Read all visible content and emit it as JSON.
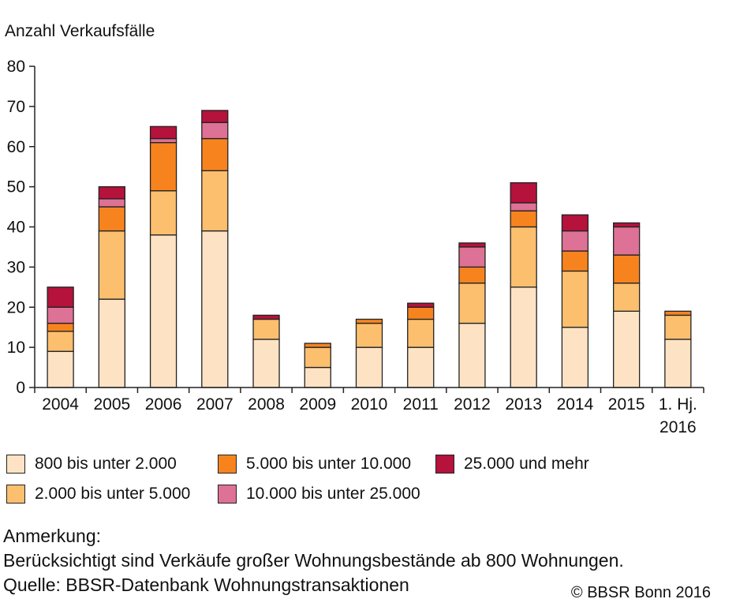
{
  "chart_data": {
    "type": "bar",
    "stacked": true,
    "ylabel": "Anzahl Verkaufsfälle",
    "ylim": [
      0,
      80
    ],
    "yticks": [
      0,
      10,
      20,
      30,
      40,
      50,
      60,
      70,
      80
    ],
    "grid": false,
    "categories": [
      "2004",
      "2005",
      "2006",
      "2007",
      "2008",
      "2009",
      "2010",
      "2011",
      "2012",
      "2013",
      "2014",
      "2015",
      "1. Hj. 2016"
    ],
    "series": [
      {
        "name": "800 bis unter 2.000",
        "color": "#fde3c4",
        "values": [
          9,
          22,
          38,
          39,
          12,
          5,
          10,
          10,
          16,
          25,
          15,
          19,
          12
        ]
      },
      {
        "name": "2.000 bis unter 5.000",
        "color": "#fbbf6e",
        "values": [
          5,
          17,
          11,
          15,
          5,
          5,
          6,
          7,
          10,
          15,
          14,
          7,
          6
        ]
      },
      {
        "name": "5.000 bis unter 10.000",
        "color": "#f7831f",
        "values": [
          2,
          6,
          12,
          8,
          0,
          1,
          1,
          3,
          4,
          4,
          5,
          7,
          1
        ]
      },
      {
        "name": "10.000 bis unter 25.000",
        "color": "#de7196",
        "values": [
          4,
          2,
          1,
          4,
          0,
          0,
          0,
          0,
          5,
          2,
          5,
          7,
          0
        ]
      },
      {
        "name": "25.000 und mehr",
        "color": "#b5123c",
        "values": [
          5,
          3,
          3,
          3,
          1,
          0,
          0,
          1,
          1,
          5,
          4,
          1,
          0
        ]
      }
    ],
    "legend_position": "bottom"
  },
  "legend_order": [
    "800 bis unter 2.000",
    "5.000 bis unter 10.000",
    "25.000 und mehr",
    "2.000 bis unter 5.000",
    "10.000 bis unter 25.000"
  ],
  "notes": {
    "heading": "Anmerkung:",
    "text": "Berücksichtigt sind Verkäufe großer Wohnungsbestände ab 800 Wohnungen.",
    "source": "Quelle: BBSR-Datenbank Wohnungstransaktionen",
    "copyright": "© BBSR Bonn 2016"
  }
}
